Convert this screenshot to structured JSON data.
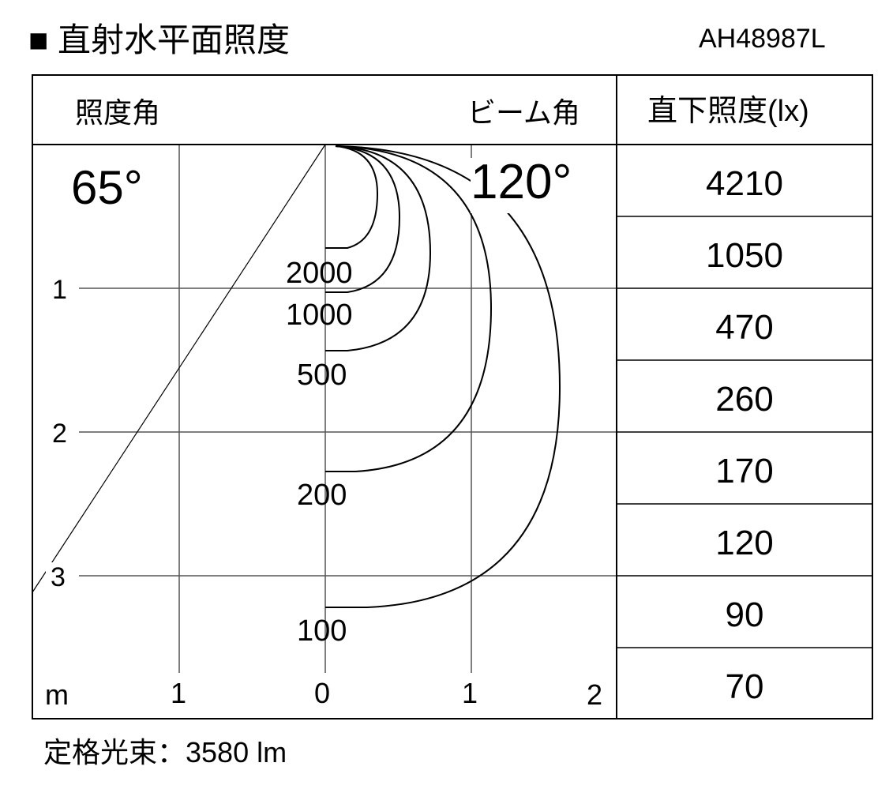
{
  "title": "■ 直射水平面照度",
  "model": "AH48987L",
  "header": {
    "spread_label": "照度角",
    "beam_label": "ビーム角",
    "nadir_label": "直下照度(lx)"
  },
  "spread_angle": "65°",
  "beam_angle": "120°",
  "nadir_values": [
    "4210",
    "1050",
    "470",
    "260",
    "170",
    "120",
    "90",
    "70"
  ],
  "chart_data": {
    "type": "diagram",
    "unit": "m",
    "y_ticks": [
      "1",
      "2",
      "3"
    ],
    "x_ticks": [
      "1",
      "0",
      "1",
      "2"
    ],
    "contour_labels": [
      "2000",
      "1000",
      "500",
      "200",
      "100"
    ]
  },
  "footer": "定格光束：3580 lm"
}
